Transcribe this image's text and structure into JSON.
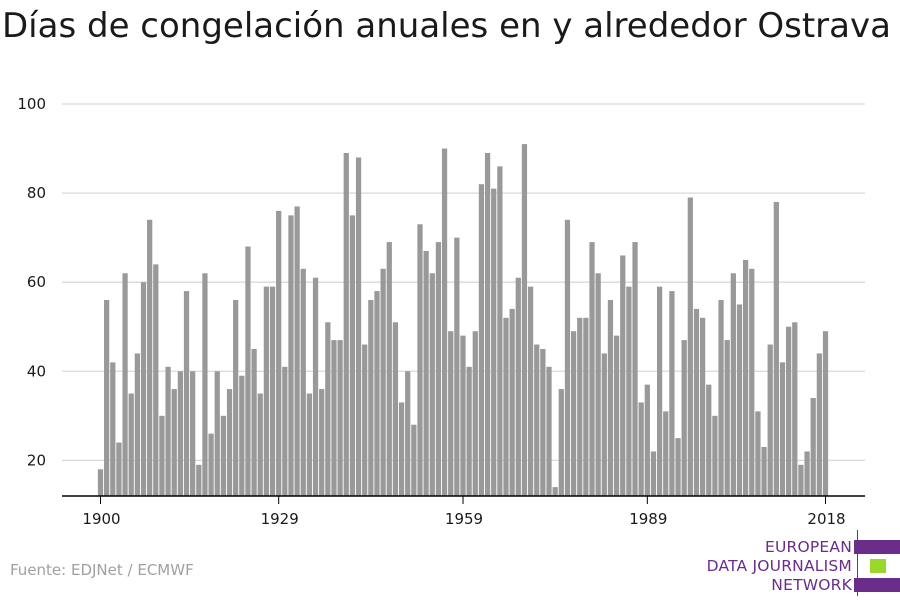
{
  "title": "Días de congelación anuales en y alrededor Ostrava",
  "source": "Fuente: EDJNet / ECMWF",
  "logo": {
    "lines": [
      "EUROPEAN",
      "DATA JOURNALISM",
      "NETWORK"
    ],
    "colors": {
      "purple": "#6b2d8a",
      "green": "#9bd62a"
    }
  },
  "colors": {
    "bar": "#999999",
    "grid": "#d9d9d9",
    "axis": "#000000",
    "text": "#1a1a1a"
  },
  "chart_data": {
    "type": "bar",
    "title": "Días de congelación anuales en y alrededor Ostrava",
    "xlabel": "",
    "ylabel": "",
    "x_ticks": [
      1900,
      1929,
      1959,
      1989,
      2018
    ],
    "y_ticks": [
      20,
      40,
      60,
      80,
      100
    ],
    "xlim": [
      1900,
      2018
    ],
    "ylim": [
      12,
      100
    ],
    "grid": true,
    "legend": "none",
    "series": [
      {
        "x": [
          1900,
          1901,
          1902,
          1903,
          1904,
          1905,
          1906,
          1907,
          1908,
          1909,
          1910,
          1911,
          1912,
          1913,
          1914,
          1915,
          1916,
          1917,
          1918,
          1919,
          1920,
          1921,
          1922,
          1923,
          1924,
          1925,
          1926,
          1927,
          1928,
          1929,
          1930,
          1931,
          1932,
          1933,
          1934,
          1935,
          1936,
          1937,
          1938,
          1939,
          1940,
          1941,
          1942,
          1943,
          1944,
          1945,
          1946,
          1947,
          1948,
          1949,
          1950,
          1951,
          1952,
          1953,
          1954,
          1955,
          1956,
          1957,
          1958,
          1959,
          1960,
          1961,
          1962,
          1963,
          1964,
          1965,
          1966,
          1967,
          1968,
          1969,
          1970,
          1971,
          1972,
          1973,
          1974,
          1975,
          1976,
          1977,
          1978,
          1979,
          1980,
          1981,
          1982,
          1983,
          1984,
          1985,
          1986,
          1987,
          1988,
          1989,
          1990,
          1991,
          1992,
          1993,
          1994,
          1995,
          1996,
          1997,
          1998,
          1999,
          2000,
          2001,
          2002,
          2003,
          2004,
          2005,
          2006,
          2007,
          2008,
          2009,
          2010,
          2011,
          2012,
          2013,
          2014,
          2015,
          2016,
          2017,
          2018
        ],
        "values": [
          18,
          56,
          42,
          24,
          62,
          35,
          44,
          60,
          74,
          64,
          30,
          41,
          36,
          40,
          58,
          40,
          19,
          62,
          26,
          40,
          30,
          36,
          56,
          39,
          68,
          45,
          35,
          59,
          59,
          76,
          41,
          75,
          77,
          63,
          35,
          61,
          36,
          51,
          47,
          47,
          89,
          75,
          88,
          46,
          56,
          58,
          63,
          69,
          51,
          33,
          40,
          28,
          73,
          67,
          62,
          69,
          90,
          49,
          70,
          48,
          41,
          49,
          82,
          89,
          81,
          86,
          52,
          54,
          61,
          91,
          59,
          46,
          45,
          41,
          14,
          36,
          74,
          49,
          52,
          52,
          69,
          62,
          44,
          56,
          48,
          66,
          59,
          69,
          33,
          37,
          22,
          59,
          31,
          58,
          25,
          47,
          79,
          54,
          52,
          37,
          30,
          56,
          47,
          62,
          55,
          65,
          63,
          31,
          23,
          46,
          78,
          42,
          50,
          51,
          19,
          22,
          34,
          44,
          49
        ]
      }
    ]
  }
}
